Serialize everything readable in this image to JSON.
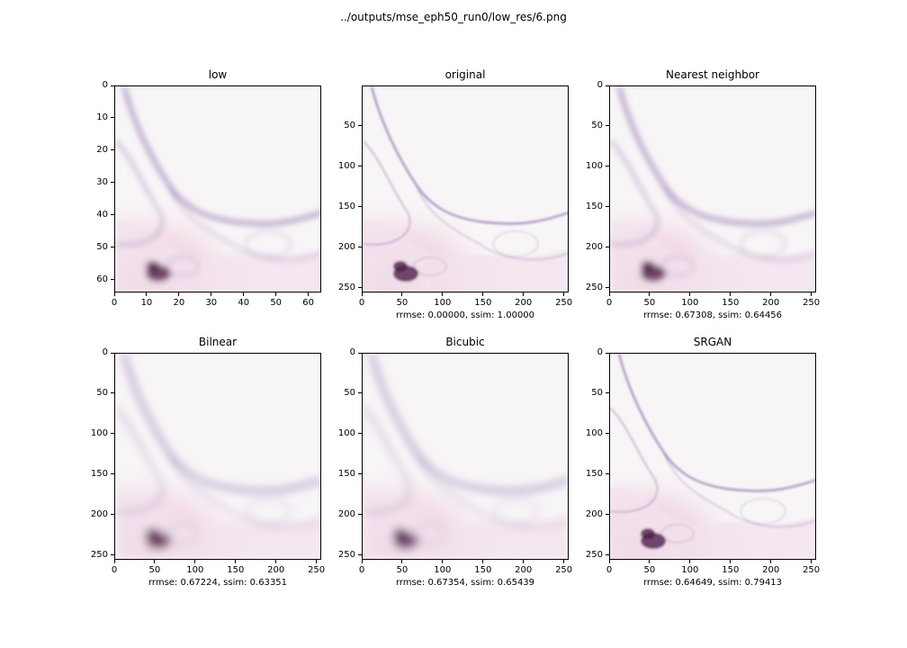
{
  "suptitle": "../outputs/mse_eph50_run0/low_res/6.png",
  "chart_data": [
    {
      "type": "image",
      "title": "low",
      "xlabel": "",
      "xlim": [
        0,
        64
      ],
      "ylim": [
        64,
        0
      ],
      "xticks": [
        0,
        10,
        20,
        30,
        40,
        50,
        60
      ],
      "yticks": [
        0,
        10,
        20,
        30,
        40,
        50,
        60
      ],
      "variant": "low"
    },
    {
      "type": "image",
      "title": "original",
      "xlabel": "rrmse: 0.00000, ssim: 1.00000",
      "xlim": [
        0,
        256
      ],
      "ylim": [
        256,
        0
      ],
      "xticks": [
        0,
        50,
        100,
        150,
        200,
        250
      ],
      "yticks": [
        50,
        100,
        150,
        200,
        250
      ],
      "variant": "sharp"
    },
    {
      "type": "image",
      "title": "Nearest neighbor",
      "xlabel": "rrmse: 0.67308, ssim: 0.64456",
      "xlim": [
        0,
        256
      ],
      "ylim": [
        256,
        0
      ],
      "xticks": [
        0,
        50,
        100,
        150,
        200,
        250
      ],
      "yticks": [
        0,
        50,
        100,
        150,
        200,
        250
      ],
      "variant": "low"
    },
    {
      "type": "image",
      "title": "Bilnear",
      "xlabel": "rrmse: 0.67224, ssim: 0.63351",
      "xlim": [
        0,
        256
      ],
      "ylim": [
        256,
        0
      ],
      "xticks": [
        0,
        50,
        100,
        150,
        200,
        250
      ],
      "yticks": [
        0,
        50,
        100,
        150,
        200,
        250
      ],
      "variant": "blur"
    },
    {
      "type": "image",
      "title": "Bicubic",
      "xlabel": "rrmse: 0.67354, ssim: 0.65439",
      "xlim": [
        0,
        256
      ],
      "ylim": [
        256,
        0
      ],
      "xticks": [
        0,
        50,
        100,
        150,
        200,
        250
      ],
      "yticks": [
        0,
        50,
        100,
        150,
        200,
        250
      ],
      "variant": "blur"
    },
    {
      "type": "image",
      "title": "SRGAN",
      "xlabel": "rrmse: 0.64649, ssim: 0.79413",
      "xlim": [
        0,
        256
      ],
      "ylim": [
        256,
        0
      ],
      "xticks": [
        0,
        50,
        100,
        150,
        200,
        250
      ],
      "yticks": [
        0,
        50,
        100,
        150,
        200,
        250
      ],
      "variant": "sharp"
    }
  ],
  "colors": {
    "background": "#f7f4f6",
    "tissue_pink": "#e9b8d0",
    "membrane": "#8a6aa8",
    "nucleus": "#5a2a55"
  }
}
